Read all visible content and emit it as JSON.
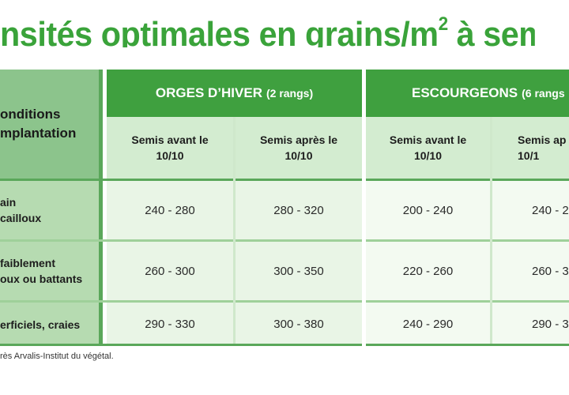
{
  "title": {
    "before_sup": "nsités optimales en grains/m",
    "sup": "2",
    "after_sup": " à semer"
  },
  "table": {
    "conditions_header": "onditions\nmplantation",
    "groups": [
      {
        "name": "ORGES D’HIVER",
        "note": "(2 rangs)"
      },
      {
        "name": "ESCOURGEONS",
        "note": "(6 rangs"
      }
    ],
    "sub_headers": [
      "Semis avant le\n10/10",
      "Semis après le\n10/10",
      "Semis avant le\n10/10",
      "Semis ap\n10/1"
    ],
    "rows": [
      {
        "label": "ain\ncailloux",
        "values": [
          "240 - 280",
          "280 - 320",
          "200 - 240",
          "240 - 2"
        ]
      },
      {
        "label": "faiblement\noux ou battants",
        "values": [
          "260 - 300",
          "300 - 350",
          "220 - 260",
          "260 - 3"
        ]
      },
      {
        "label": "erficiels, craies",
        "values": [
          "290 - 330",
          "300 - 380",
          "240 - 290",
          "290 - 3"
        ]
      }
    ]
  },
  "source": "rès Arvalis-Institut du végétal."
}
